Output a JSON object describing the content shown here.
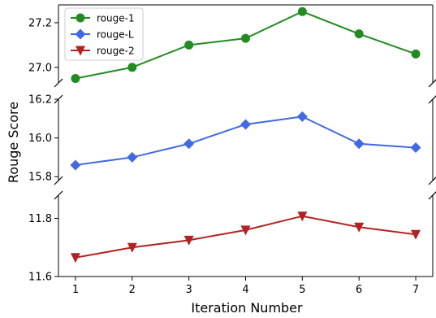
{
  "chart_data": {
    "type": "line",
    "xlabel": "Iteration Number",
    "ylabel": "Rouge Score",
    "x": [
      1,
      2,
      3,
      4,
      5,
      6,
      7
    ],
    "xlim": [
      0.7,
      7.3
    ],
    "x_ticks": [
      "1",
      "2",
      "3",
      "4",
      "5",
      "6",
      "7"
    ],
    "legend_position": "upper-left",
    "grid": false,
    "broken_axis": true,
    "series": [
      {
        "name": "rouge-1",
        "color": "#228b22",
        "marker": "circle",
        "values": [
          26.95,
          27.0,
          27.1,
          27.13,
          27.25,
          27.15,
          27.06
        ],
        "ylim": [
          26.93,
          27.28
        ],
        "y_ticks": [
          "27.0",
          "27.2"
        ],
        "y_tick_values": [
          27.0,
          27.2
        ]
      },
      {
        "name": "rouge-L",
        "color": "#4169e1",
        "marker": "diamond",
        "values": [
          15.86,
          15.9,
          15.97,
          16.07,
          16.11,
          15.97,
          15.95
        ],
        "ylim": [
          15.78,
          16.2
        ],
        "y_ticks": [
          "15.8",
          "16.0",
          "16.2"
        ],
        "y_tick_values": [
          15.8,
          16.0,
          16.2
        ]
      },
      {
        "name": "rouge-2",
        "color": "#b22222",
        "marker": "triangle-down",
        "values": [
          11.665,
          11.7,
          11.725,
          11.76,
          11.808,
          11.77,
          11.745
        ],
        "ylim": [
          11.6,
          11.88
        ],
        "y_ticks": [
          "11.6",
          "11.8"
        ],
        "y_tick_values": [
          11.6,
          11.8
        ]
      }
    ]
  }
}
